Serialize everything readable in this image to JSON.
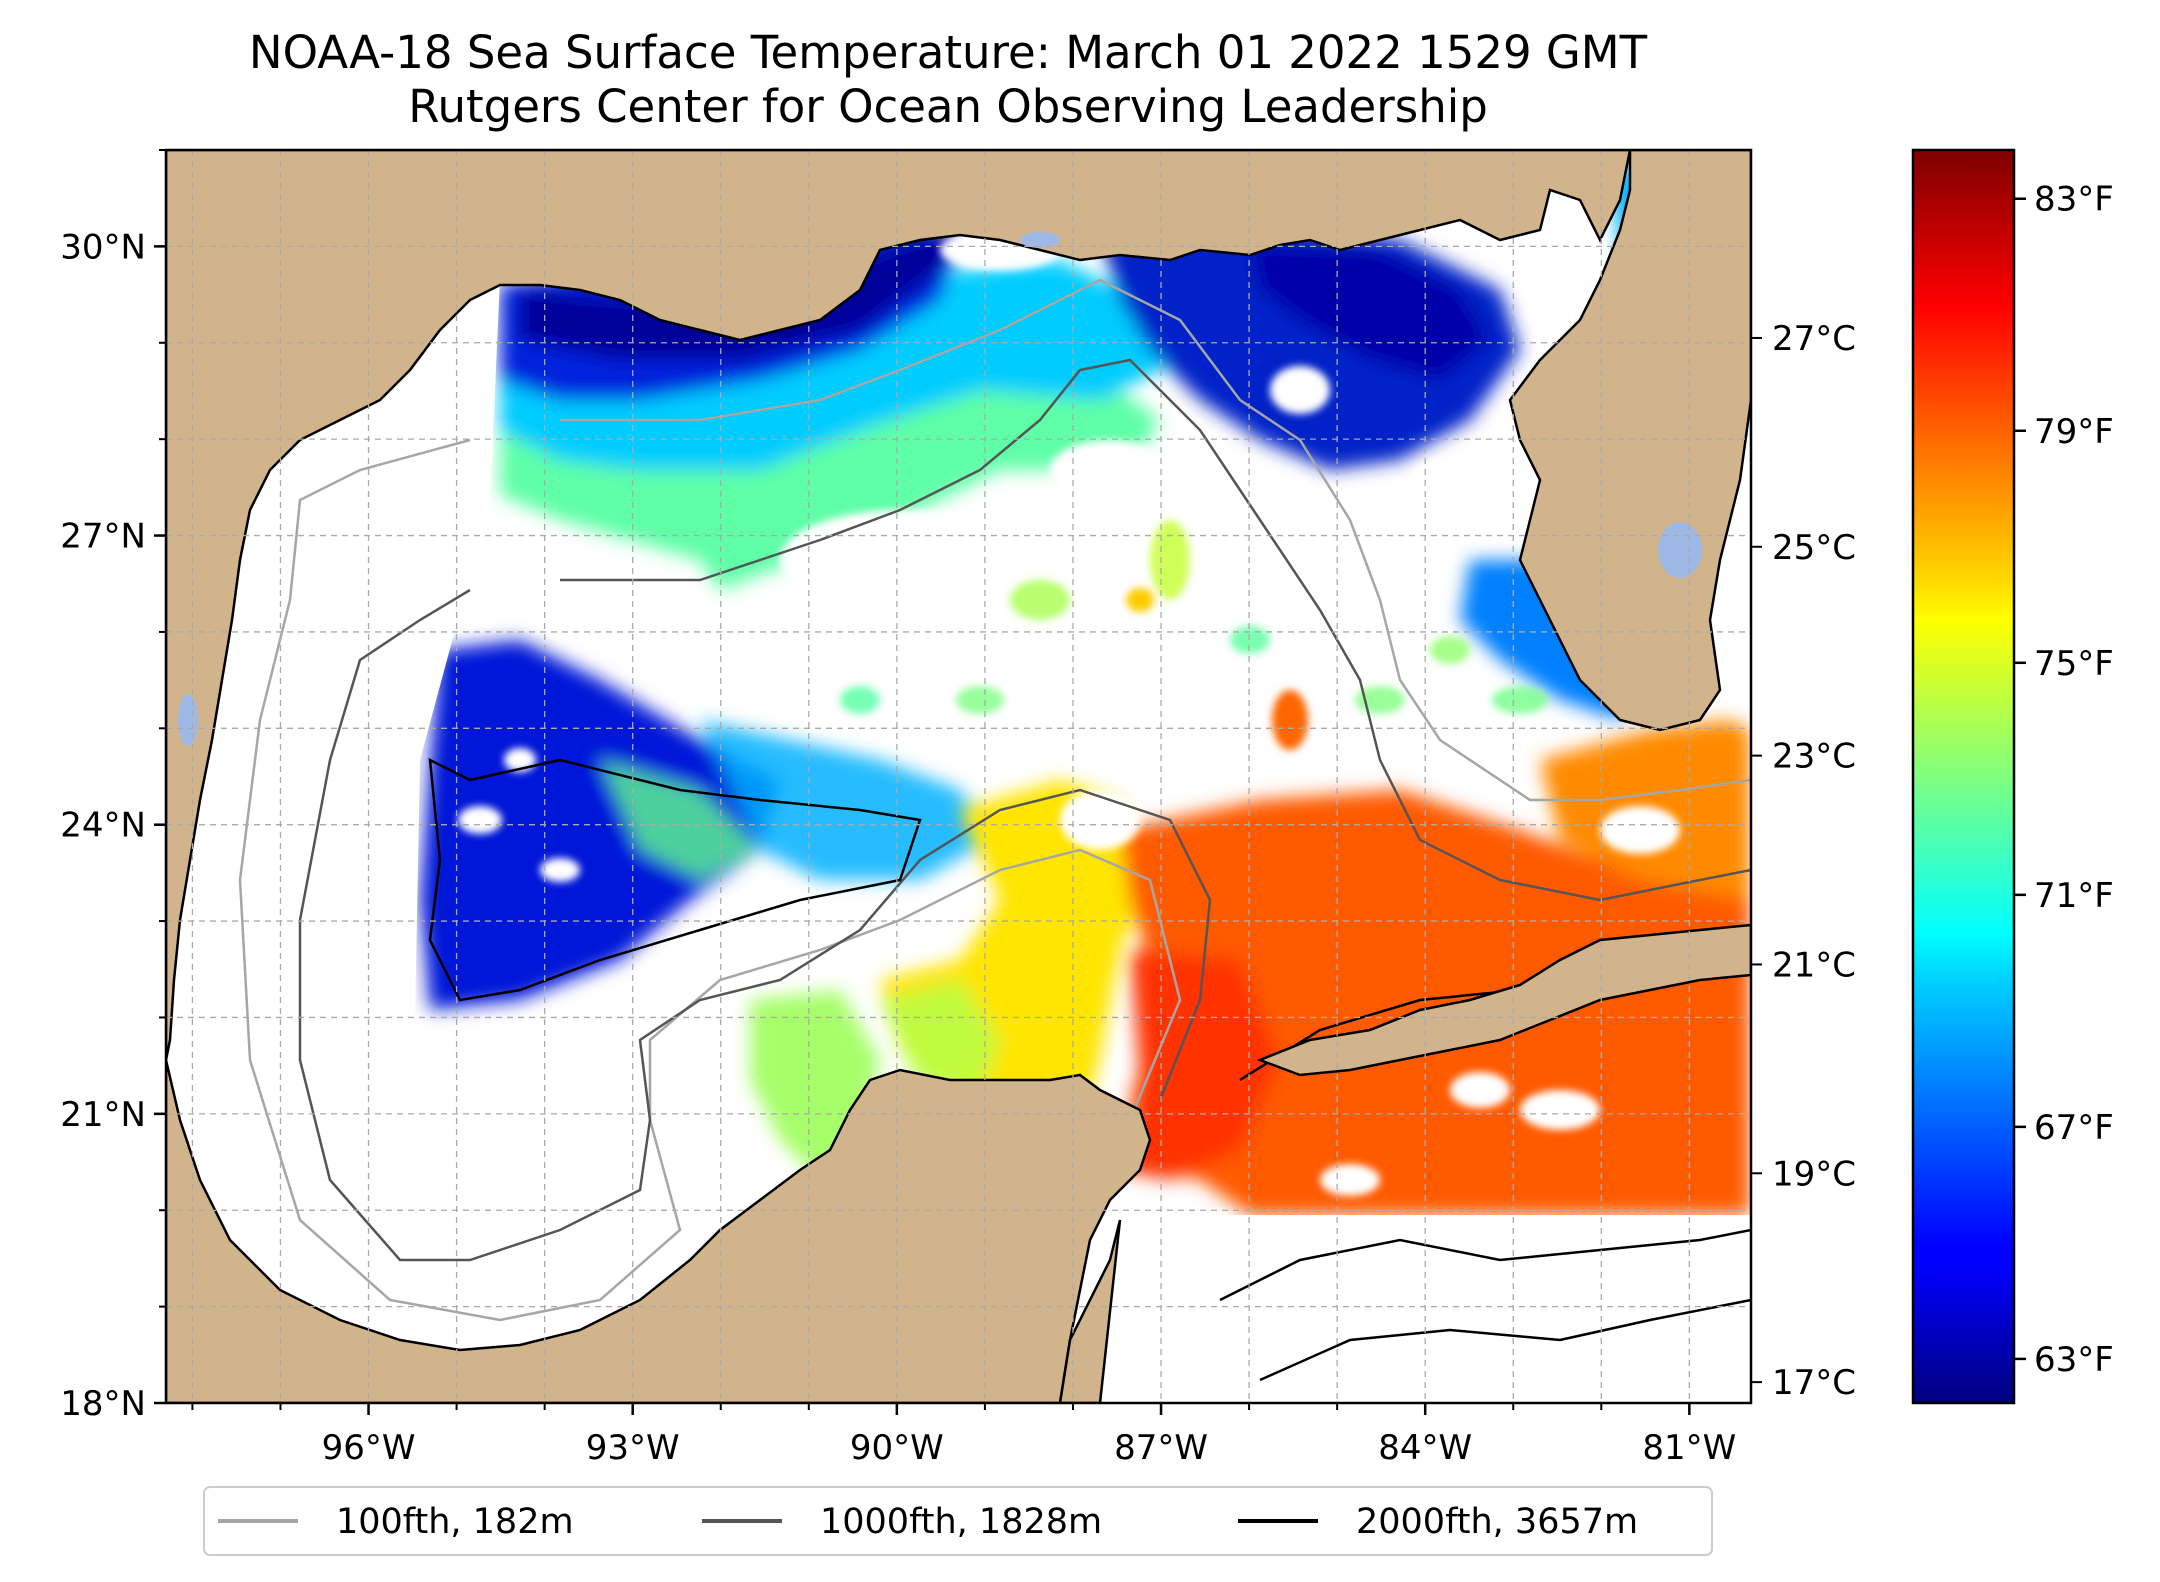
{
  "title": {
    "line1": "NOAA-18 Sea Surface Temperature: March 01 2022 1529 GMT",
    "line2": "Rutgers Center for Ocean Observing Leadership"
  },
  "map": {
    "lon_range": [
      -98.3,
      -80.3
    ],
    "lat_range": [
      18.0,
      31.0
    ],
    "grid": true,
    "land_color": "#d2b48c",
    "lakes_color": "#9fb9e6",
    "lat_ticks": [
      {
        "value": 30,
        "label": "30°N"
      },
      {
        "value": 27,
        "label": "27°N"
      },
      {
        "value": 24,
        "label": "24°N"
      },
      {
        "value": 21,
        "label": "21°N"
      },
      {
        "value": 18,
        "label": "18°N"
      }
    ],
    "lon_ticks": [
      {
        "value": -96,
        "label": "96°W"
      },
      {
        "value": -93,
        "label": "93°W"
      },
      {
        "value": -90,
        "label": "90°W"
      },
      {
        "value": -87,
        "label": "87°W"
      },
      {
        "value": -84,
        "label": "84°W"
      },
      {
        "value": -81,
        "label": "81°W"
      }
    ]
  },
  "colorbar": {
    "colormap": "jet",
    "range_c": [
      16.8,
      28.8
    ],
    "celsius_ticks": [
      {
        "value": 27,
        "label": "27°C"
      },
      {
        "value": 25,
        "label": "25°C"
      },
      {
        "value": 23,
        "label": "23°C"
      },
      {
        "value": 21,
        "label": "21°C"
      },
      {
        "value": 19,
        "label": "19°C"
      },
      {
        "value": 17,
        "label": "17°C"
      }
    ],
    "fahrenheit_ticks": [
      {
        "value": 83,
        "label": "83°F"
      },
      {
        "value": 79,
        "label": "79°F"
      },
      {
        "value": 75,
        "label": "75°F"
      },
      {
        "value": 71,
        "label": "71°F"
      },
      {
        "value": 67,
        "label": "67°F"
      },
      {
        "value": 63,
        "label": "63°F"
      }
    ]
  },
  "legend": {
    "placement": "bottom-center",
    "items": [
      {
        "label": "100fth, 182m",
        "color": "#a6a6a6"
      },
      {
        "label": "1000fth, 1828m",
        "color": "#555555"
      },
      {
        "label": "2000fth, 3657m",
        "color": "#000000"
      }
    ]
  }
}
